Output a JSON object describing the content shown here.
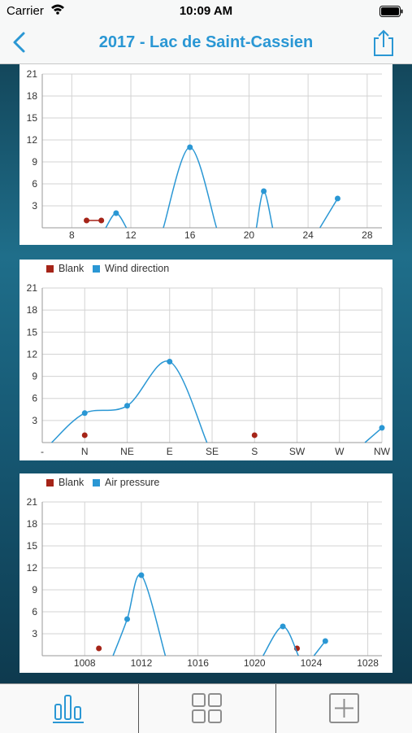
{
  "status_bar": {
    "carrier": "Carrier",
    "time": "10:09 AM"
  },
  "nav": {
    "title": "2017 - Lac de Saint-Cassien"
  },
  "colors": {
    "accent": "#2a97d4",
    "blank": "#a52418",
    "series": "#2a97d4"
  },
  "tabs": [
    {
      "icon": "bar-chart-icon",
      "active": true
    },
    {
      "icon": "grid-icon",
      "active": false
    },
    {
      "icon": "plus-icon",
      "active": false
    }
  ],
  "chart_data": [
    {
      "type": "line",
      "legend": [],
      "x_ticks": [
        "8",
        "12",
        "16",
        "20",
        "24",
        "28"
      ],
      "y_ticks": [
        "3",
        "6",
        "9",
        "12",
        "15",
        "18",
        "21"
      ],
      "xlim": [
        6,
        29
      ],
      "ylim": [
        0,
        21
      ],
      "grid": true,
      "series": [
        {
          "role": "blank",
          "points": [
            [
              9,
              1
            ],
            [
              10,
              1
            ]
          ]
        },
        {
          "role": "main",
          "points": [
            [
              11,
              2
            ],
            [
              16,
              11
            ],
            [
              21,
              5
            ],
            [
              26,
              4
            ]
          ],
          "curves": [
            [
              [
                10.3,
                0
              ],
              [
                11,
                2
              ],
              [
                11.7,
                0
              ]
            ],
            [
              [
                14.2,
                0
              ],
              [
                16,
                11
              ],
              [
                17.8,
                0
              ]
            ],
            [
              [
                20.5,
                0
              ],
              [
                21,
                5
              ],
              [
                21.6,
                0
              ]
            ],
            [
              [
                24.8,
                0
              ],
              [
                26,
                4
              ]
            ]
          ]
        }
      ]
    },
    {
      "type": "line",
      "legend": [
        "Blank",
        "Wind direction"
      ],
      "x_ticks": [
        "-",
        "N",
        "NE",
        "E",
        "SE",
        "S",
        "SW",
        "W",
        "NW"
      ],
      "y_ticks": [
        "3",
        "6",
        "9",
        "12",
        "15",
        "18",
        "21"
      ],
      "xlim": [
        0,
        8
      ],
      "ylim": [
        0,
        21
      ],
      "grid": true,
      "series": [
        {
          "role": "blank",
          "points": [
            [
              1,
              1
            ],
            [
              5,
              1
            ]
          ]
        },
        {
          "role": "main",
          "points": [
            [
              1,
              4
            ],
            [
              2,
              5
            ],
            [
              3,
              11
            ],
            [
              8,
              2
            ]
          ],
          "curves": [
            [
              [
                0.22,
                0
              ],
              [
                1,
                4
              ],
              [
                2,
                5
              ],
              [
                3,
                11
              ],
              [
                3.88,
                0
              ]
            ],
            [
              [
                7.6,
                0
              ],
              [
                8,
                2
              ]
            ]
          ]
        }
      ]
    },
    {
      "type": "line",
      "legend": [
        "Blank",
        "Air pressure"
      ],
      "x_ticks": [
        "1008",
        "1012",
        "1016",
        "1020",
        "1024",
        "1028"
      ],
      "y_ticks": [
        "3",
        "6",
        "9",
        "12",
        "15",
        "18",
        "21"
      ],
      "xlim": [
        1005,
        1029
      ],
      "ylim": [
        0,
        21
      ],
      "grid": true,
      "series": [
        {
          "role": "blank",
          "points": [
            [
              1009,
              1
            ],
            [
              1023,
              1
            ]
          ]
        },
        {
          "role": "main",
          "points": [
            [
              1011,
              5
            ],
            [
              1012,
              11
            ],
            [
              1022,
              4
            ],
            [
              1025,
              2
            ]
          ],
          "curves": [
            [
              [
                1010,
                0
              ],
              [
                1011,
                5
              ],
              [
                1012,
                11
              ],
              [
                1013.7,
                0
              ]
            ],
            [
              [
                1020.6,
                0
              ],
              [
                1022,
                4
              ],
              [
                1023.1,
                0
              ]
            ],
            [
              [
                1024.2,
                0
              ],
              [
                1025,
                2
              ]
            ]
          ]
        }
      ]
    }
  ]
}
